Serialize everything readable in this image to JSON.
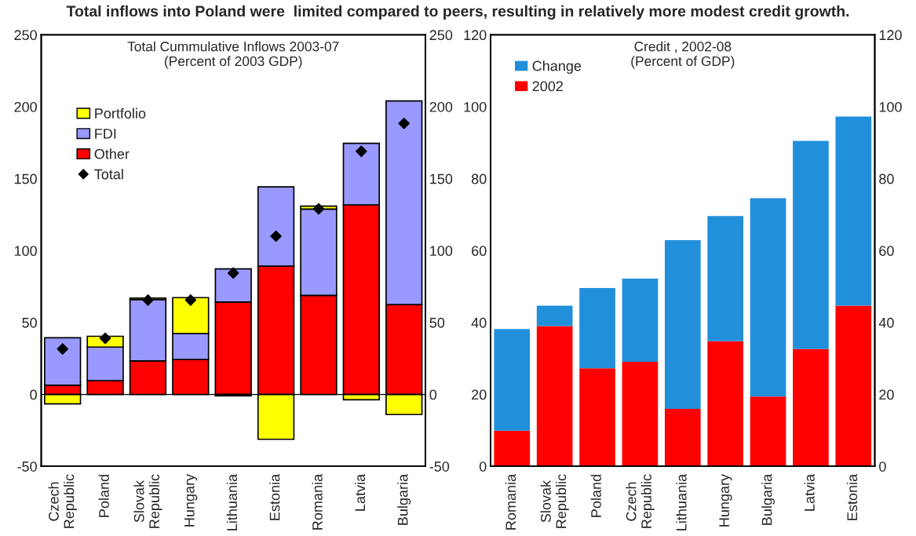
{
  "chart_data": [
    {
      "type": "bar",
      "title": "Total Cummulative Inflows 2003-07",
      "subtitle": "(Percent of 2003 GDP)",
      "annotations": [
        "Total inflows into Poland were  limited compared to peers, resulting in relatively more modest credit growth."
      ],
      "categories": [
        "Czech Republic",
        "Poland",
        "Slovak Republic",
        "Hungary",
        "Lithuania",
        "Estonia",
        "Romania",
        "Latvia",
        "Bulgaria"
      ],
      "stacked": true,
      "series": [
        {
          "name": "Other",
          "color": "#ff0000",
          "values": [
            6.4,
            9.6,
            23.3,
            24.3,
            64.2,
            89.2,
            68.9,
            131.8,
            62.5
          ]
        },
        {
          "name": "FDI",
          "color": "#9999ff",
          "values": [
            33,
            23.3,
            42.7,
            18,
            23.1,
            55.1,
            60,
            42.8,
            141.5
          ]
        },
        {
          "name": "Portfolio",
          "color": "#ffff00",
          "values": [
            -6.6,
            7.5,
            1,
            25,
            -1,
            -31.2,
            2,
            -3.7,
            -14
          ]
        },
        {
          "name": "Total",
          "type": "scatter",
          "color": "#000000",
          "marker": "diamond",
          "x": [
            "Czech Republic",
            "Poland",
            "Slovak Republic",
            "Hungary",
            "Lithuania",
            "Estonia",
            "Romania",
            "Latvia",
            "Bulgaria"
          ],
          "values": [
            31.6,
            39,
            65.6,
            65.6,
            84.4,
            110,
            129,
            169,
            188.4
          ]
        }
      ],
      "ref_lines": [
        {
          "axis": "y",
          "value": 0,
          "color": "#000000"
        }
      ],
      "ylim": [
        -50,
        250
      ],
      "yticks": [
        -50,
        0,
        50,
        100,
        150,
        200,
        250
      ],
      "y2lim": [
        -50,
        250
      ],
      "y2ticks": [
        -50,
        0,
        50,
        100,
        150,
        200,
        250
      ],
      "legend": "top left",
      "grid": false
    },
    {
      "type": "bar",
      "title": "Credit , 2002-08",
      "subtitle": "(Percent of GDP)",
      "categories": [
        "Romania",
        "Slovak Republic",
        "Poland",
        "Czech Republic",
        "Lithuania",
        "Hungary",
        "Bulgaria",
        "Latvia",
        "Estonia"
      ],
      "stacked": true,
      "series": [
        {
          "name": "2002",
          "color": "#ff0000",
          "values": [
            9.9,
            39,
            27.3,
            29.1,
            16,
            34.8,
            19.4,
            32.6,
            44.7
          ]
        },
        {
          "name": "Change",
          "color": "#228fdb",
          "values": [
            28.3,
            5.7,
            22.3,
            23.1,
            46.9,
            34.8,
            55.2,
            57.9,
            52.6
          ]
        }
      ],
      "ylim": [
        0,
        120
      ],
      "yticks": [
        0,
        20,
        40,
        60,
        80,
        100,
        120
      ],
      "y2lim": [
        0,
        120
      ],
      "y2ticks": [
        0,
        20,
        40,
        60,
        80,
        100,
        120
      ],
      "legend": "top left",
      "grid": false
    }
  ]
}
